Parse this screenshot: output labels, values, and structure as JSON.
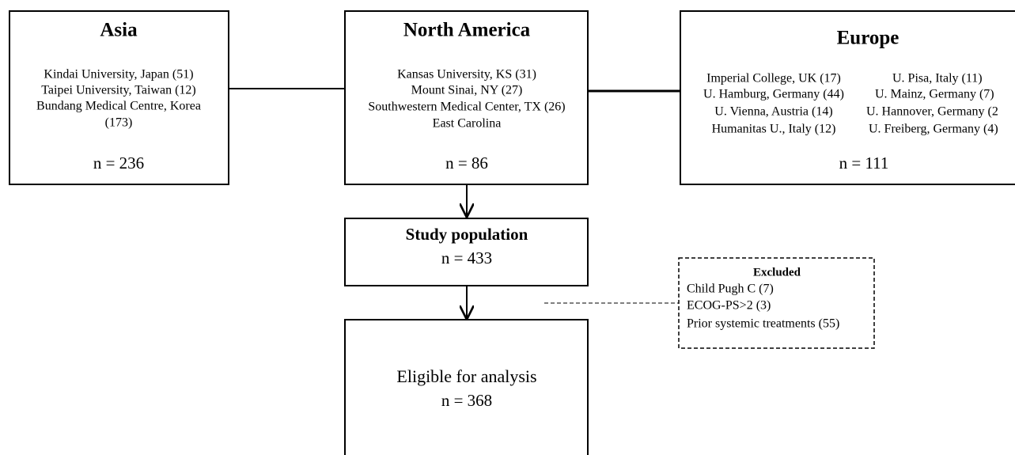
{
  "nodes": {
    "asia": {
      "title": "Asia",
      "lines": [
        "Kindai University, Japan (51)",
        "Taipei University, Taiwan (12)",
        "Bundang Medical Centre, Korea",
        "(173)"
      ],
      "n": "n = 236"
    },
    "north_america": {
      "title": "North America",
      "lines": [
        "Kansas University, KS (31)",
        "Mount Sinai, NY (27)",
        "Southwestern Medical Center, TX (26)",
        "East Carolina"
      ],
      "n": "n = 86"
    },
    "europe": {
      "title": "Europe",
      "left": [
        "Imperial College, UK (17)",
        "U. Hamburg, Germany (44)",
        "U. Vienna, Austria (14)",
        "Humanitas U., Italy (12)"
      ],
      "right": [
        "U. Pisa, Italy (11)",
        "U. Mainz, Germany (7)",
        "U. Hannover, Germany (2",
        "U. Freiberg, Germany (4)"
      ],
      "n": "n = 111"
    },
    "study": {
      "title": "Study population",
      "n": "n = 433"
    },
    "excluded": {
      "title": "Excluded",
      "lines": [
        "Child Pugh C (7)",
        "ECOG-PS>2 (3)",
        "Prior systemic treatments (55)"
      ]
    },
    "eligible": {
      "title": "Eligible for analysis",
      "n": "n = 368"
    }
  }
}
